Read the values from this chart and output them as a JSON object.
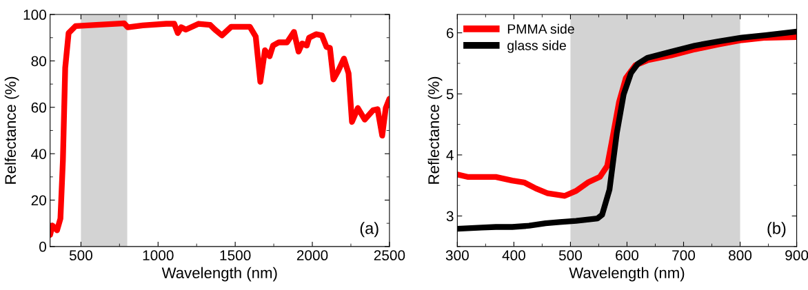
{
  "chart_data": [
    {
      "type": "line",
      "xlabel": "Wavelength (nm)",
      "ylabel": "Relfectance (%)",
      "xlim": [
        300,
        2500
      ],
      "ylim": [
        0,
        100
      ],
      "xticks": [
        500,
        1000,
        1500,
        2000,
        2500
      ],
      "yticks": [
        0,
        20,
        40,
        60,
        80,
        100
      ],
      "grid": false,
      "legend": false,
      "bands": [
        {
          "axis": "x",
          "from": 500,
          "to": 800,
          "color": "#d3d3d3"
        }
      ],
      "annotations": [
        "(a)"
      ],
      "series": [
        {
          "color": "#ff0000",
          "x": [
            300,
            315,
            345,
            367,
            383,
            398,
            420,
            465,
            600,
            780,
            804,
            900,
            1053,
            1105,
            1128,
            1150,
            1180,
            1263,
            1338,
            1369,
            1414,
            1474,
            1595,
            1633,
            1663,
            1693,
            1723,
            1745,
            1783,
            1836,
            1881,
            1911,
            1934,
            1964,
            1979,
            2024,
            2062,
            2092,
            2114,
            2137,
            2167,
            2205,
            2235,
            2257,
            2295,
            2340,
            2393,
            2423,
            2453,
            2476,
            2500
          ],
          "values": [
            5,
            9,
            7,
            12,
            37,
            77,
            92,
            95,
            95.5,
            96.2,
            94.5,
            95.3,
            96,
            96,
            92,
            94.5,
            93.5,
            96,
            95.5,
            93.5,
            91,
            94.7,
            94.7,
            90.5,
            71,
            84.6,
            82,
            86.6,
            88,
            88,
            92.5,
            84,
            87.5,
            86.6,
            90,
            91.5,
            91,
            86,
            85.6,
            72,
            75.6,
            81,
            74.6,
            53.7,
            59.7,
            54.7,
            58.7,
            59.2,
            47.8,
            59.7,
            63.7
          ]
        }
      ]
    },
    {
      "type": "line",
      "xlabel": "Wavelength (nm)",
      "ylabel": "Reflectance (%)",
      "xlim": [
        300,
        900
      ],
      "ylim": [
        2.5,
        6.3
      ],
      "xticks": [
        300,
        400,
        500,
        600,
        700,
        800,
        900
      ],
      "yticks": [
        3,
        4,
        5,
        6
      ],
      "grid": false,
      "legend": "top left",
      "bands": [
        {
          "axis": "x",
          "from": 500,
          "to": 800,
          "color": "#d3d3d3"
        }
      ],
      "annotations": [
        "(b)"
      ],
      "series": [
        {
          "name": "PMMA side",
          "color": "#ff0000",
          "x": [
            300,
            318,
            343,
            368,
            397,
            418,
            439,
            460,
            490,
            510,
            531,
            552,
            565,
            573,
            586,
            598,
            615,
            636,
            678,
            720,
            762,
            803,
            845,
            900
          ],
          "values": [
            3.68,
            3.64,
            3.64,
            3.64,
            3.58,
            3.55,
            3.45,
            3.37,
            3.33,
            3.41,
            3.55,
            3.64,
            3.82,
            4.21,
            4.87,
            5.26,
            5.47,
            5.55,
            5.63,
            5.73,
            5.81,
            5.88,
            5.92,
            5.93
          ]
        },
        {
          "name": "glass side",
          "color": "#000000",
          "x": [
            300,
            343,
            368,
            397,
            427,
            456,
            481,
            510,
            548,
            556,
            569,
            582,
            594,
            607,
            619,
            636,
            678,
            720,
            762,
            803,
            845,
            900
          ],
          "values": [
            2.79,
            2.81,
            2.82,
            2.82,
            2.84,
            2.88,
            2.9,
            2.92,
            2.96,
            3.02,
            3.43,
            4.36,
            4.99,
            5.34,
            5.49,
            5.59,
            5.69,
            5.79,
            5.86,
            5.92,
            5.96,
            6.02
          ]
        }
      ]
    }
  ]
}
